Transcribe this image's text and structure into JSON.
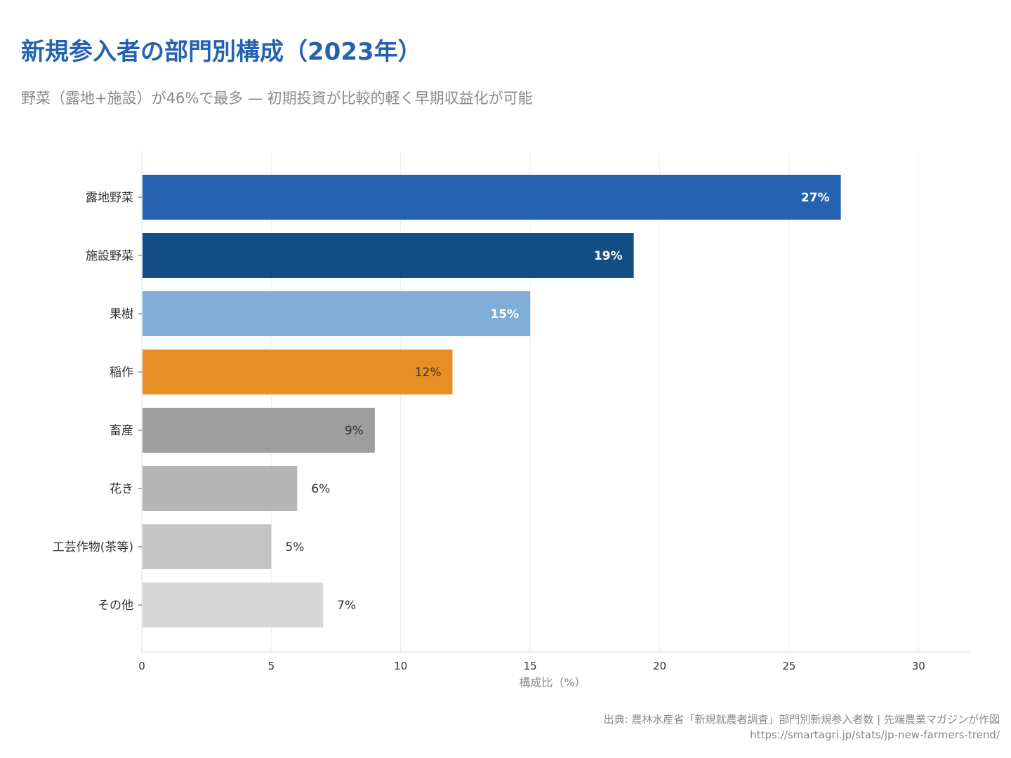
{
  "title": "新規参入者の部門別構成（2023年）",
  "subtitle": "野菜（露地+施設）が46%で最多 — 初期投資が比較的軽く早期収益化が可能",
  "source_line1": "出典: 農林水産省「新規就農者調査」部門別新規参入者数 | 先端農業マガジンが作図",
  "source_line2": "https://smartagri.jp/stats/jp-new-farmers-trend/",
  "chart_data": {
    "type": "bar",
    "orientation": "horizontal",
    "categories": [
      "露地野菜",
      "施設野菜",
      "果樹",
      "稲作",
      "畜産",
      "花き",
      "工芸作物(茶等)",
      "その他"
    ],
    "values": [
      27,
      19,
      15,
      12,
      9,
      6,
      5,
      7
    ],
    "data_labels": [
      "27%",
      "19%",
      "15%",
      "12%",
      "9%",
      "6%",
      "5%",
      "7%"
    ],
    "colors": [
      "#2563b0",
      "#134d85",
      "#7fadd6",
      "#e68f25",
      "#9e9e9e",
      "#b5b5b5",
      "#c4c4c4",
      "#d6d6d6"
    ],
    "label_colors": [
      "#ffffff",
      "#ffffff",
      "#ffffff",
      "#333333",
      "#333333",
      "#333333",
      "#333333",
      "#333333"
    ],
    "xlabel": "構成比（%）",
    "ylabel": "",
    "xlim": [
      0,
      32
    ],
    "xticks": [
      0,
      5,
      10,
      15,
      20,
      25,
      30
    ],
    "grid": "vertical"
  }
}
